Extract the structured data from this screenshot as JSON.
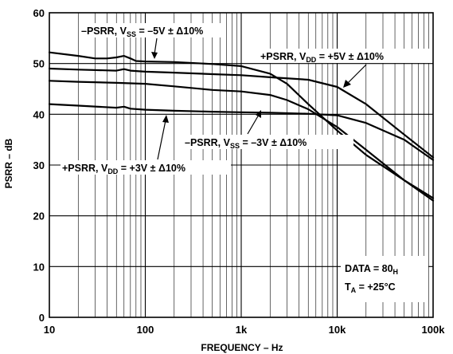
{
  "chart_data": {
    "type": "line",
    "xscale": "log",
    "xlim": [
      10,
      100000
    ],
    "ylim": [
      0,
      60
    ],
    "grid": true,
    "xlabel": "FREQUENCY – Hz",
    "ylabel": "PSRR – dB",
    "x_ticks": [
      {
        "value": 10,
        "label": "10"
      },
      {
        "value": 100,
        "label": "100"
      },
      {
        "value": 1000,
        "label": "1k"
      },
      {
        "value": 10000,
        "label": "10k"
      },
      {
        "value": 100000,
        "label": "100k"
      }
    ],
    "y_ticks": [
      {
        "value": 0,
        "label": "0"
      },
      {
        "value": 10,
        "label": "10"
      },
      {
        "value": 20,
        "label": "20"
      },
      {
        "value": 30,
        "label": "30"
      },
      {
        "value": 40,
        "label": "40"
      },
      {
        "value": 50,
        "label": "50"
      },
      {
        "value": 60,
        "label": "60"
      }
    ],
    "series": [
      {
        "id": "neg5",
        "x": [
          10,
          20,
          30,
          40,
          50,
          60,
          70,
          80,
          100,
          200,
          500,
          1000,
          2000,
          3000,
          5000,
          10000,
          20000,
          50000,
          100000
        ],
        "y": [
          52.2,
          51.5,
          51.0,
          51.0,
          51.2,
          51.5,
          51.0,
          50.5,
          50.4,
          50.3,
          49.9,
          49.5,
          48.0,
          46.0,
          42.0,
          36.8,
          32.0,
          27.0,
          23.5
        ]
      },
      {
        "id": "pos5",
        "x": [
          10,
          20,
          50,
          60,
          70,
          100,
          200,
          500,
          1000,
          2000,
          5000,
          10000,
          20000,
          50000,
          100000
        ],
        "y": [
          49.0,
          48.8,
          48.6,
          48.9,
          48.6,
          48.4,
          48.2,
          47.9,
          47.7,
          47.3,
          46.8,
          45.4,
          42.0,
          36.0,
          31.5
        ]
      },
      {
        "id": "neg3",
        "x": [
          10,
          20,
          50,
          100,
          200,
          500,
          1000,
          2000,
          3000,
          5000,
          10000,
          20000,
          50000,
          100000
        ],
        "y": [
          46.6,
          46.4,
          46.2,
          46.0,
          45.5,
          44.8,
          44.5,
          43.8,
          42.8,
          41.0,
          37.5,
          33.0,
          27.0,
          23.0
        ]
      },
      {
        "id": "pos3",
        "x": [
          10,
          20,
          50,
          60,
          70,
          100,
          200,
          500,
          1000,
          2000,
          5000,
          10000,
          20000,
          50000,
          100000
        ],
        "y": [
          42.0,
          41.7,
          41.3,
          41.5,
          41.1,
          40.9,
          40.7,
          40.5,
          40.4,
          40.3,
          40.1,
          39.8,
          38.3,
          35.0,
          31.0
        ]
      }
    ],
    "annotations": {
      "neg5": {
        "main": "–PSRR, V",
        "sub": "SS",
        "rest": " = –5V ± Δ10%"
      },
      "pos5": {
        "main": "+PSRR, V",
        "sub": "DD",
        "rest": " = +5V ± Δ10%"
      },
      "neg3": {
        "main": "–PSRR, V",
        "sub": "SS",
        "rest": " = –3V ± Δ10%"
      },
      "pos3": {
        "main": "+PSRR, V",
        "sub": "DD",
        "rest": " = +3V ± Δ10%"
      },
      "data": {
        "main": "DATA = 80",
        "sub": "H",
        "rest": ""
      },
      "temp": {
        "main": "T",
        "sub": "A",
        "rest": " = +25°C"
      }
    }
  }
}
